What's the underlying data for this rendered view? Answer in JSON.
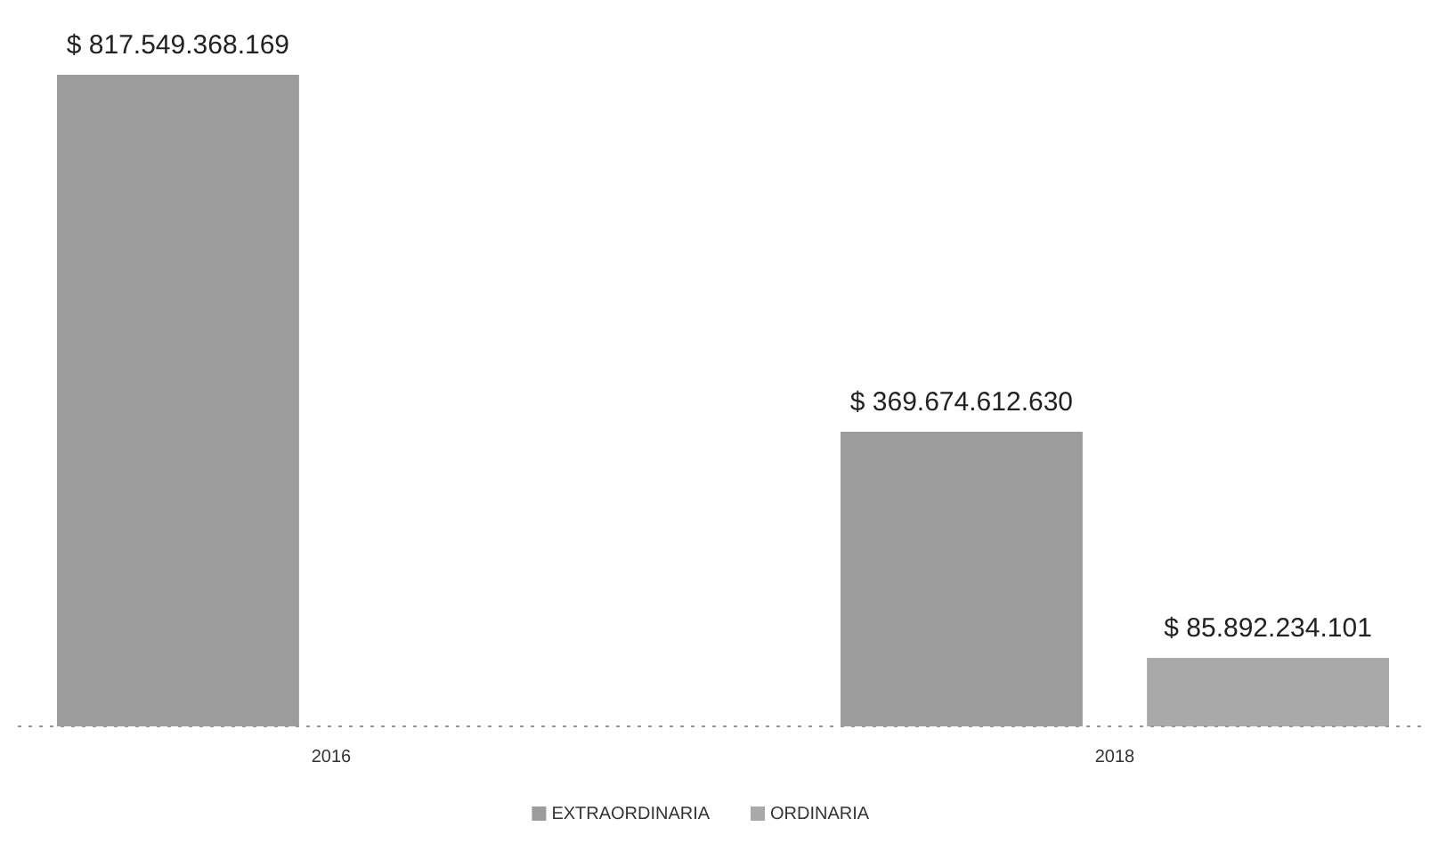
{
  "chart_data": {
    "type": "bar",
    "categories": [
      "2016",
      "2018"
    ],
    "relative": false,
    "series": [
      {
        "name": "EXTRAORDINARIA",
        "color": "#9c9c9c",
        "values": [
          817549368169,
          369674612630
        ],
        "value_labels": [
          "$ 817.549.368.169",
          "$ 369.674.612.630"
        ]
      },
      {
        "name": "ORDINARIA",
        "color": "#a9a9a9",
        "values": [
          null,
          85892234101
        ],
        "value_labels": [
          null,
          "$ 85.892.234.101"
        ]
      }
    ],
    "legend": "bottom"
  }
}
